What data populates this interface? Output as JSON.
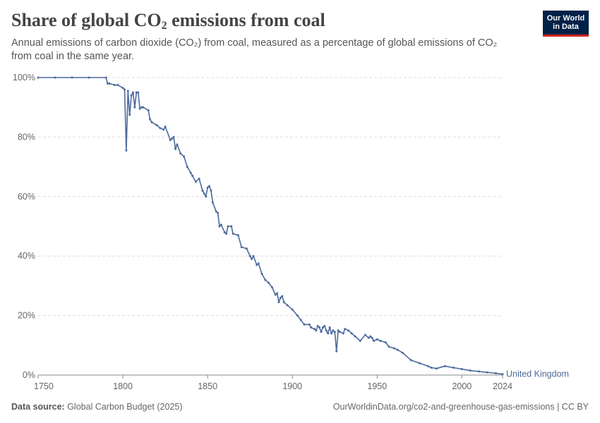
{
  "header": {
    "title_main": "Share of global CO",
    "title_sub": "2",
    "title_end": " emissions from coal",
    "subtitle": "Annual emissions of carbon dioxide (CO₂) from coal, measured as a percentage of global emissions of CO₂ from coal in the same year."
  },
  "logo": {
    "line1": "Our World",
    "line2": "in Data"
  },
  "footer": {
    "source_label": "Data source:",
    "source_value": " Global Carbon Budget (2025)",
    "right": "OurWorldinData.org/co2-and-greenhouse-gas-emissions | CC BY"
  },
  "colors": {
    "series": "#4c6a9c",
    "grid": "#dddddd",
    "axis": "#888888",
    "text": "#666666"
  },
  "chart_data": {
    "type": "line",
    "title": "Share of global CO₂ emissions from coal",
    "xlim": [
      1750,
      2024
    ],
    "ylim": [
      0,
      100
    ],
    "x_ticks": [
      1750,
      1800,
      1850,
      1900,
      1950,
      2000,
      2024
    ],
    "y_ticks": [
      0,
      20,
      40,
      60,
      80,
      100
    ],
    "y_tick_labels": [
      "0%",
      "20%",
      "40%",
      "60%",
      "80%",
      "100%"
    ],
    "grid": "horizontal dashed",
    "series": [
      {
        "name": "United Kingdom",
        "x": [
          1750,
          1760,
          1770,
          1780,
          1790,
          1791,
          1792,
          1795,
          1797,
          1800,
          1801,
          1802,
          1803,
          1804,
          1805,
          1806,
          1807,
          1808,
          1809,
          1810,
          1811,
          1812,
          1815,
          1816,
          1817,
          1820,
          1822,
          1824,
          1825,
          1828,
          1829,
          1830,
          1831,
          1832,
          1834,
          1836,
          1838,
          1840,
          1841,
          1843,
          1845,
          1847,
          1848,
          1849,
          1850,
          1851,
          1852,
          1853,
          1855,
          1856,
          1857,
          1858,
          1860,
          1861,
          1862,
          1864,
          1865,
          1868,
          1870,
          1873,
          1875,
          1876,
          1877,
          1879,
          1880,
          1882,
          1884,
          1886,
          1888,
          1890,
          1891,
          1892,
          1893,
          1894,
          1895,
          1897,
          1900,
          1903,
          1905,
          1907,
          1910,
          1911,
          1913,
          1914,
          1915,
          1916,
          1917,
          1918,
          1919,
          1920,
          1921,
          1922,
          1923,
          1924,
          1925,
          1926,
          1927,
          1928,
          1930,
          1931,
          1933,
          1935,
          1937,
          1940,
          1943,
          1945,
          1946,
          1947,
          1948,
          1950,
          1952,
          1955,
          1957,
          1960,
          1962,
          1965,
          1970,
          1975,
          1980,
          1982,
          1985,
          1990,
          1995,
          2000,
          2005,
          2010,
          2015,
          2020,
          2024
        ],
        "values": [
          100,
          100,
          100,
          100,
          100,
          98,
          98,
          97.5,
          97.5,
          96.5,
          96,
          75.5,
          95.5,
          87.5,
          94,
          95,
          90,
          95,
          95,
          89.5,
          90,
          90,
          89,
          86,
          85,
          84,
          83,
          82.5,
          83.5,
          79,
          79.5,
          80,
          76,
          77.5,
          74.5,
          73.5,
          70,
          68,
          67,
          65,
          66,
          62,
          61,
          60,
          63,
          63.5,
          62,
          58,
          55,
          54.5,
          50,
          50.5,
          48,
          47.5,
          50,
          50,
          47.5,
          47,
          43,
          42.5,
          40,
          39,
          40,
          37,
          37.5,
          34,
          32,
          31,
          29.5,
          27,
          27.5,
          24.5,
          26,
          26.5,
          24.5,
          23.5,
          22,
          20,
          18.5,
          17,
          17,
          16,
          15.5,
          15,
          16.5,
          16,
          14.5,
          16,
          16.5,
          15,
          14,
          16,
          14,
          15,
          14.5,
          8,
          15,
          14.5,
          14,
          15.5,
          15,
          14,
          13,
          11.5,
          13.5,
          12.5,
          13,
          12.5,
          11.5,
          12,
          11.5,
          11,
          9.5,
          9,
          8.5,
          7.5,
          5,
          4,
          3,
          2.5,
          2.2,
          3,
          2.5,
          2,
          1.5,
          1.2,
          0.9,
          0.6,
          0.3
        ]
      }
    ]
  }
}
